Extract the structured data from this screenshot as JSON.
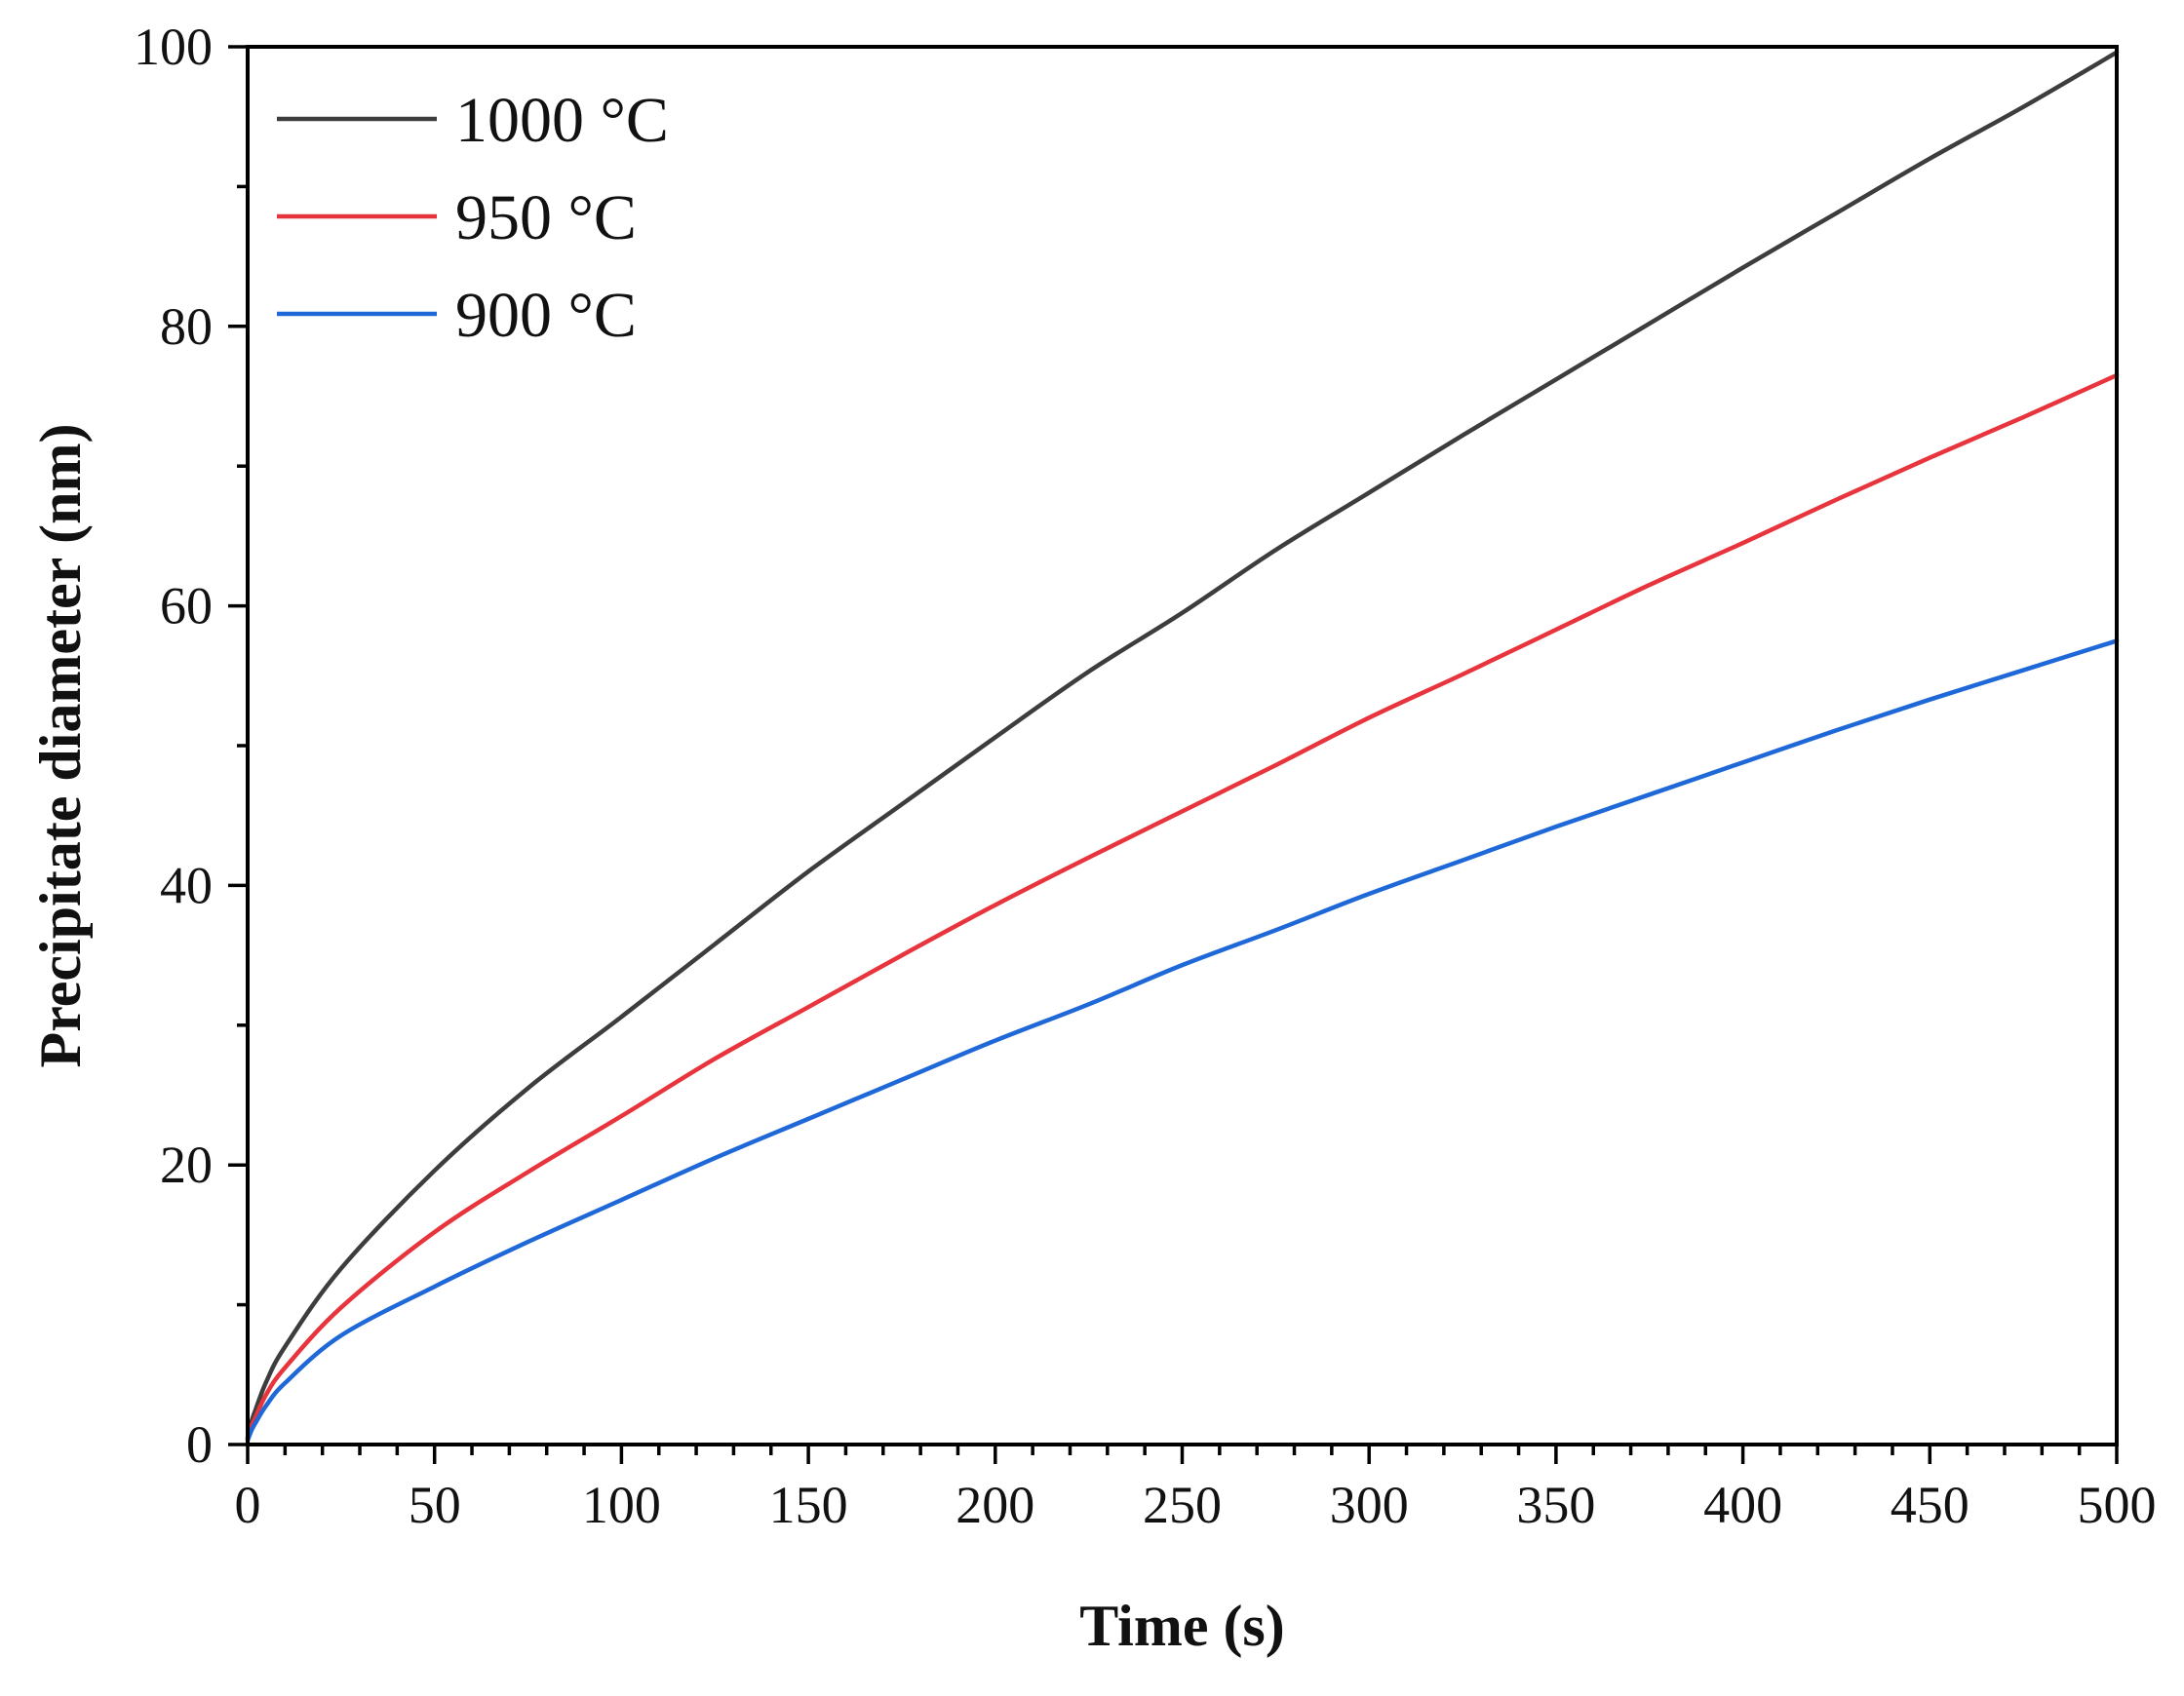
{
  "chart_data": {
    "type": "line",
    "title": "",
    "xlabel": "Time (s)",
    "ylabel": "Precipitate diameter (nm)",
    "xlim": [
      0,
      500
    ],
    "ylim": [
      0,
      100
    ],
    "xticks": [
      0,
      50,
      100,
      150,
      200,
      250,
      300,
      350,
      400,
      450,
      500
    ],
    "xtick_labels": [
      "0",
      "50",
      "100",
      "150",
      "200",
      "250",
      "300",
      "350",
      "400",
      "450",
      "500"
    ],
    "yticks": [
      0,
      20,
      40,
      60,
      80,
      100
    ],
    "ytick_labels": [
      "0",
      "20",
      "40",
      "60",
      "80",
      "100"
    ],
    "x_minor_step": 10,
    "y_minor_step": 10,
    "grid": false,
    "legend_position": "top-left",
    "x": [
      0,
      1,
      2,
      5,
      10,
      25,
      50,
      75,
      100,
      125,
      150,
      175,
      200,
      225,
      250,
      275,
      300,
      325,
      350,
      375,
      400,
      425,
      450,
      475,
      500
    ],
    "series": [
      {
        "name": "1000 °C",
        "color": "#3d3d3d",
        "values": [
          0.5,
          1.6,
          2.4,
          4.5,
          7.0,
          12.6,
          19.6,
          25.5,
          30.6,
          35.8,
          41.0,
          45.8,
          50.6,
          55.3,
          59.5,
          64.0,
          68.1,
          72.2,
          76.2,
          80.2,
          84.2,
          88.1,
          92.0,
          95.7,
          99.6
        ]
      },
      {
        "name": "950 °C",
        "color": "#e8343c",
        "values": [
          0.4,
          1.3,
          1.9,
          3.6,
          5.5,
          9.8,
          15.2,
          19.5,
          23.5,
          27.6,
          31.3,
          35.0,
          38.6,
          42.0,
          45.3,
          48.6,
          52.0,
          55.1,
          58.3,
          61.5,
          64.5,
          67.6,
          70.6,
          73.5,
          76.5
        ]
      },
      {
        "name": "900 °C",
        "color": "#1f68d8",
        "values": [
          0.3,
          1.0,
          1.5,
          2.8,
          4.4,
          7.8,
          11.3,
          14.5,
          17.5,
          20.5,
          23.3,
          26.1,
          28.9,
          31.5,
          34.3,
          36.8,
          39.4,
          41.8,
          44.2,
          46.5,
          48.8,
          51.1,
          53.3,
          55.4,
          57.5
        ]
      }
    ]
  }
}
